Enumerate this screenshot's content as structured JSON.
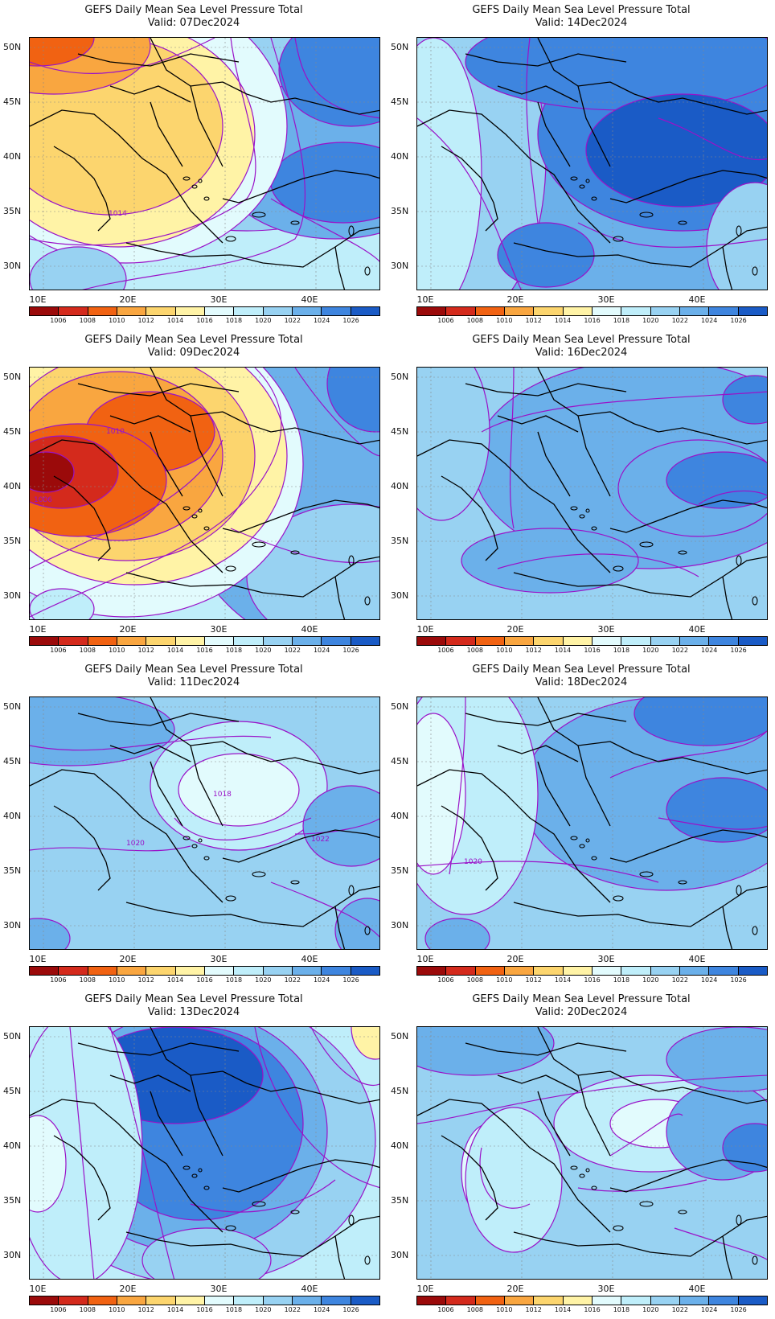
{
  "title": "GEFS Daily Mean Sea Level Pressure Total",
  "lat_labels": [
    "50N",
    "45N",
    "40N",
    "35N",
    "30N"
  ],
  "lon_labels": [
    "10E",
    "20E",
    "30E",
    "40E"
  ],
  "colorbar": {
    "labels": [
      "1006",
      "1008",
      "1010",
      "1012",
      "1014",
      "1016",
      "1018",
      "1020",
      "1022",
      "1024",
      "1026"
    ],
    "colors": [
      "#9b0a0a",
      "#d42a1c",
      "#f16212",
      "#f9a640",
      "#fcd56e",
      "#fff3a6",
      "#e2fbfd",
      "#bfeefa",
      "#98d2f2",
      "#6bb0ea",
      "#3e85df",
      "#1a5bc6"
    ]
  },
  "contour_color": "#9a12c8",
  "panels": [
    {
      "valid": "Valid: 07Dec2024",
      "labels": [
        "1014"
      ]
    },
    {
      "valid": "Valid: 14Dec2024",
      "labels": []
    },
    {
      "valid": "Valid: 09Dec2024",
      "labels": [
        "1010",
        "1006"
      ]
    },
    {
      "valid": "Valid: 16Dec2024",
      "labels": []
    },
    {
      "valid": "Valid: 11Dec2024",
      "labels": [
        "1018",
        "1020",
        "1022"
      ]
    },
    {
      "valid": "Valid: 18Dec2024",
      "labels": [
        "1020"
      ]
    },
    {
      "valid": "Valid: 13Dec2024",
      "labels": []
    },
    {
      "valid": "Valid: 20Dec2024",
      "labels": []
    }
  ]
}
